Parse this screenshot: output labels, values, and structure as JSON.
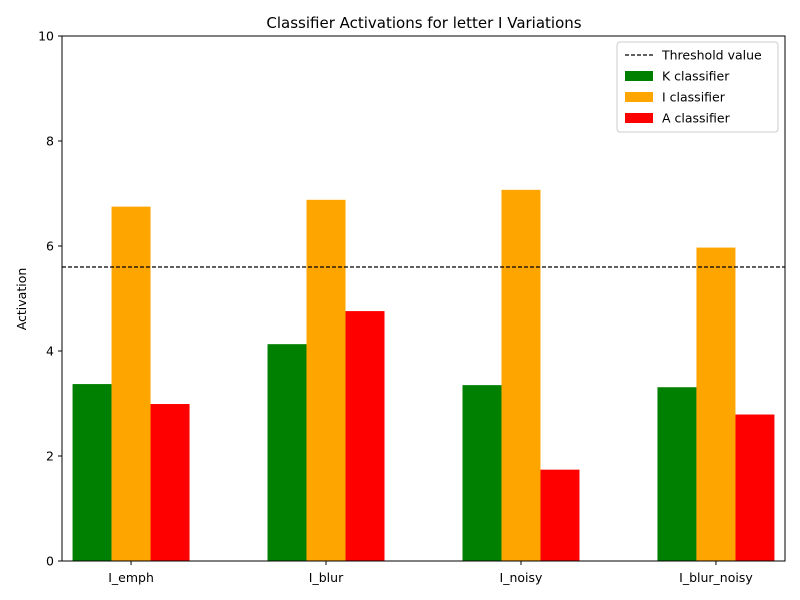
{
  "chart_data": {
    "type": "bar",
    "title": "Classifier Activations for letter I Variations",
    "xlabel": "",
    "ylabel": "Activation",
    "ylim": [
      0,
      10
    ],
    "yticks": [
      0,
      2,
      4,
      6,
      8,
      10
    ],
    "categories": [
      "I_emph",
      "I_blur",
      "I_noisy",
      "I_blur_noisy"
    ],
    "series": [
      {
        "name": "K classifier",
        "color": "#008000",
        "values": [
          3.37,
          4.13,
          3.35,
          3.31
        ]
      },
      {
        "name": "I classifier",
        "color": "#ffa500",
        "values": [
          6.75,
          6.88,
          7.07,
          5.97
        ]
      },
      {
        "name": "A classifier",
        "color": "#ff0000",
        "values": [
          2.99,
          4.76,
          1.74,
          2.79
        ]
      }
    ],
    "threshold": {
      "name": "Threshold value",
      "value": 5.6,
      "style": "dashed",
      "color": "#000000"
    },
    "legend": {
      "placement": "top-right"
    },
    "grid": false
  }
}
